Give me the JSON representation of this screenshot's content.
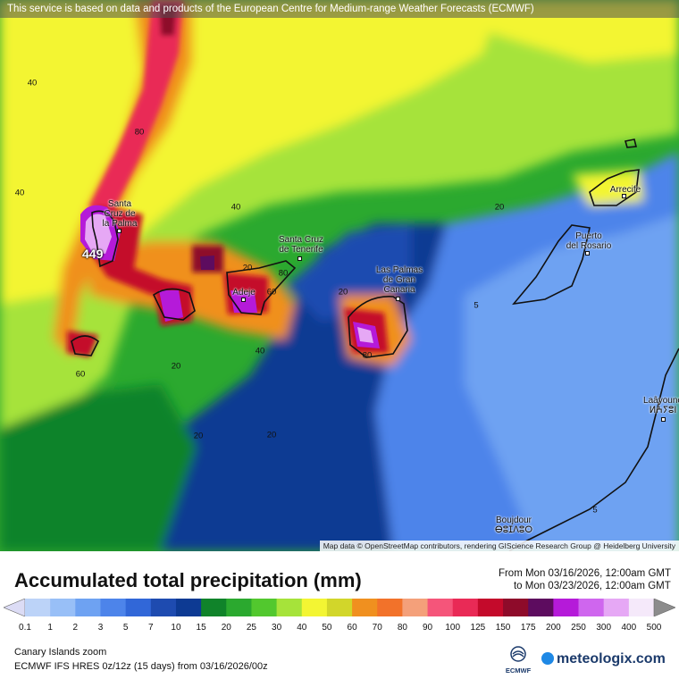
{
  "banner": "This service is based on data and products of the European Centre for Medium-range Weather Forecasts (ECMWF)",
  "attribution": "Map data © OpenStreetMap contributors, rendering GIScience Research Group @ Heidelberg University",
  "cities": {
    "santa_cruz_palma": [
      "Santa",
      "Cruz de",
      "la Palma"
    ],
    "santa_cruz_tenerife": [
      "Santa Cruz",
      "de Tenerife"
    ],
    "adeje": "Adeje",
    "las_palmas": [
      "Las Palmas",
      "de Gran",
      "Canaria"
    ],
    "puerto_rosario": [
      "Puerto",
      "del Rosario"
    ],
    "arrecife": "Arrecife",
    "laayoune": [
      "Laâyoune",
      "ⵍⵄⵢⵓⵏ"
    ],
    "boujdour": [
      "Boujdour",
      "ⴱⵓⵊⴷⵓⵔ"
    ]
  },
  "contour_labels": [
    "40",
    "80",
    "40",
    "40",
    "20",
    "80",
    "60",
    "20",
    "20",
    "60",
    "40",
    "20",
    "20",
    "80",
    "20",
    "5",
    "20",
    "20",
    "5"
  ],
  "max_value": "449",
  "legend": {
    "title": "Accumulated total precipitation (mm)",
    "from": "From Mon 03/16/2026, 12:00am GMT",
    "to": "to Mon 03/23/2026, 12:00am GMT",
    "levels": [
      "0.1",
      "1",
      "2",
      "3",
      "5",
      "7",
      "10",
      "15",
      "20",
      "25",
      "30",
      "40",
      "50",
      "60",
      "70",
      "80",
      "90",
      "100",
      "125",
      "150",
      "175",
      "200",
      "250",
      "300",
      "400",
      "500"
    ],
    "colors": [
      "#dcdcf5",
      "#bcd3f8",
      "#98bff7",
      "#6ea2f2",
      "#4d84ea",
      "#3167d8",
      "#1e4bb0",
      "#0d3a93",
      "#10832a",
      "#2ba92f",
      "#52c82e",
      "#a6e33a",
      "#f3f533",
      "#d2d62a",
      "#f0901f",
      "#f2722a",
      "#f4a07a",
      "#f5557a",
      "#e92a56",
      "#c40a2b",
      "#8e0b2a",
      "#5d0c5f",
      "#b51ad9",
      "#cf66ee",
      "#e6a8f5",
      "#f5e9fa",
      "#d9d9d9"
    ],
    "region": "Canary Islands zoom",
    "model": "ECMWF IFS HRES 0z/12z (15 days) from  03/16/2026/00z"
  },
  "logos": {
    "ecmwf": "ECMWF",
    "meteologix": "meteologix.com"
  }
}
